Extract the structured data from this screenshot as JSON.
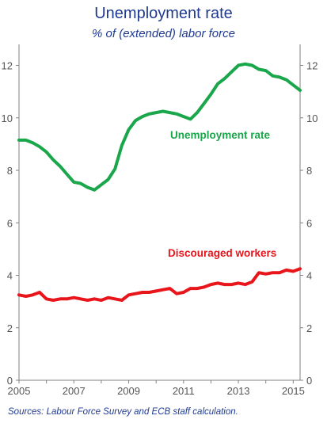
{
  "chart_data": {
    "type": "line",
    "title": "Unemployment rate",
    "subtitle": "% of (extended) labor force",
    "xlim": [
      2005,
      2015.25
    ],
    "ylim": [
      0,
      12.8
    ],
    "x_ticks": [
      "2005",
      "2007",
      "2009",
      "2011",
      "2013",
      "2015"
    ],
    "y_ticks": [
      "0",
      "2",
      "4",
      "6",
      "8",
      "10",
      "12"
    ],
    "grid": false,
    "series": [
      {
        "name": "Unemployment rate",
        "color": "#1aa64a",
        "x": [
          2005.0,
          2005.25,
          2005.5,
          2005.75,
          2006.0,
          2006.25,
          2006.5,
          2006.75,
          2007.0,
          2007.25,
          2007.5,
          2007.75,
          2008.0,
          2008.25,
          2008.5,
          2008.75,
          2009.0,
          2009.25,
          2009.5,
          2009.75,
          2010.0,
          2010.25,
          2010.5,
          2010.75,
          2011.0,
          2011.25,
          2011.5,
          2011.75,
          2012.0,
          2012.25,
          2012.5,
          2012.75,
          2013.0,
          2013.25,
          2013.5,
          2013.75,
          2014.0,
          2014.25,
          2014.5,
          2014.75,
          2015.0,
          2015.25
        ],
        "values": [
          9.15,
          9.15,
          9.05,
          8.9,
          8.7,
          8.4,
          8.15,
          7.85,
          7.55,
          7.5,
          7.35,
          7.25,
          7.45,
          7.65,
          8.05,
          8.95,
          9.55,
          9.9,
          10.05,
          10.15,
          10.2,
          10.25,
          10.2,
          10.15,
          10.05,
          9.95,
          10.2,
          10.55,
          10.9,
          11.3,
          11.5,
          11.75,
          12.0,
          12.05,
          12.0,
          11.85,
          11.8,
          11.6,
          11.55,
          11.45,
          11.25,
          11.05
        ]
      },
      {
        "name": "Discouraged workers",
        "color": "#e8151b",
        "x": [
          2005.0,
          2005.25,
          2005.5,
          2005.75,
          2006.0,
          2006.25,
          2006.5,
          2006.75,
          2007.0,
          2007.25,
          2007.5,
          2007.75,
          2008.0,
          2008.25,
          2008.5,
          2008.75,
          2009.0,
          2009.25,
          2009.5,
          2009.75,
          2010.0,
          2010.25,
          2010.5,
          2010.75,
          2011.0,
          2011.25,
          2011.5,
          2011.75,
          2012.0,
          2012.25,
          2012.5,
          2012.75,
          2013.0,
          2013.25,
          2013.5,
          2013.75,
          2014.0,
          2014.25,
          2014.5,
          2014.75,
          2015.0,
          2015.25
        ],
        "values": [
          3.25,
          3.2,
          3.25,
          3.35,
          3.1,
          3.05,
          3.1,
          3.1,
          3.15,
          3.1,
          3.05,
          3.1,
          3.05,
          3.15,
          3.1,
          3.05,
          3.25,
          3.3,
          3.35,
          3.35,
          3.4,
          3.45,
          3.5,
          3.3,
          3.35,
          3.5,
          3.5,
          3.55,
          3.65,
          3.7,
          3.65,
          3.65,
          3.7,
          3.65,
          3.75,
          4.1,
          4.05,
          4.1,
          4.1,
          4.2,
          4.15,
          4.25
        ]
      }
    ]
  },
  "labels": {
    "unemployment": "Unemployment rate",
    "discouraged": "Discouraged workers"
  },
  "source": "Sources: Labour Force Survey and ECB staff calculation."
}
